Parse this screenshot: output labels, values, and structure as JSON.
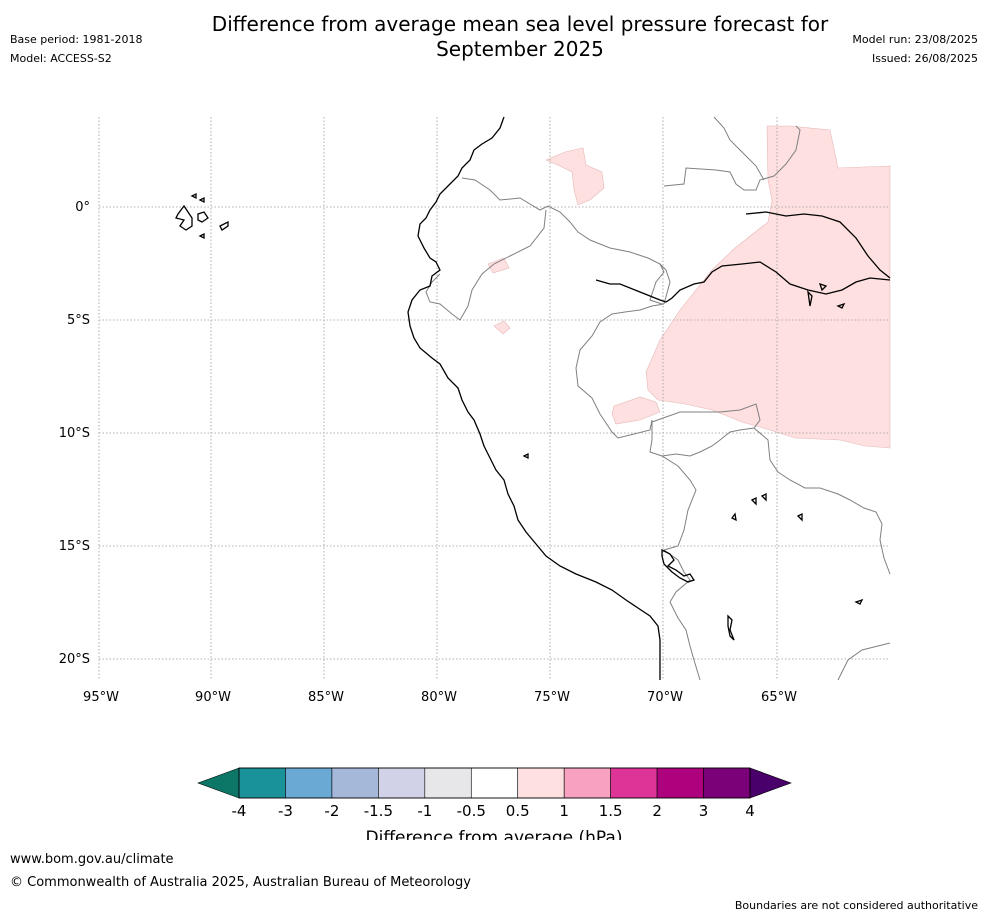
{
  "header": {
    "title_line1": "Difference from average mean sea level pressure forecast for",
    "title_line2": "September 2025",
    "base_period": "Base period: 1981-2018",
    "model": "Model: ACCESS-S2",
    "model_run": "Model run: 23/08/2025",
    "issued": "Issued: 26/08/2025"
  },
  "map": {
    "lat_labels": [
      "0°",
      "5°S",
      "10°S",
      "15°S",
      "20°S"
    ],
    "lon_labels": [
      "95°W",
      "90°W",
      "85°W",
      "80°W",
      "75°W",
      "70°W",
      "65°W"
    ],
    "anomaly_fill": "#fde0df",
    "coast_color": "#000000",
    "border_color": "#808080",
    "grid_color": "#999999"
  },
  "colorbar": {
    "label": "Difference from average (hPa)",
    "ticks": [
      "-4",
      "-3",
      "-2",
      "-1.5",
      "-1",
      "-0.5",
      "0.5",
      "1",
      "1.5",
      "2",
      "3",
      "4"
    ],
    "colors": [
      "#1a9299",
      "#69a9d3",
      "#a6b8da",
      "#d1d1e7",
      "#e7e7ea",
      "#ffffff",
      "#fde0df",
      "#f8a1c0",
      "#dd3497",
      "#ae017e",
      "#7a0177"
    ],
    "low_extend_color": "#0c7767",
    "high_extend_color": "#49006a"
  },
  "footer": {
    "url": "www.bom.gov.au/climate",
    "copyright": "© Commonwealth of Australia 2025, Australian Bureau of Meteorology",
    "disclaimer": "Boundaries are not considered authoritative"
  }
}
